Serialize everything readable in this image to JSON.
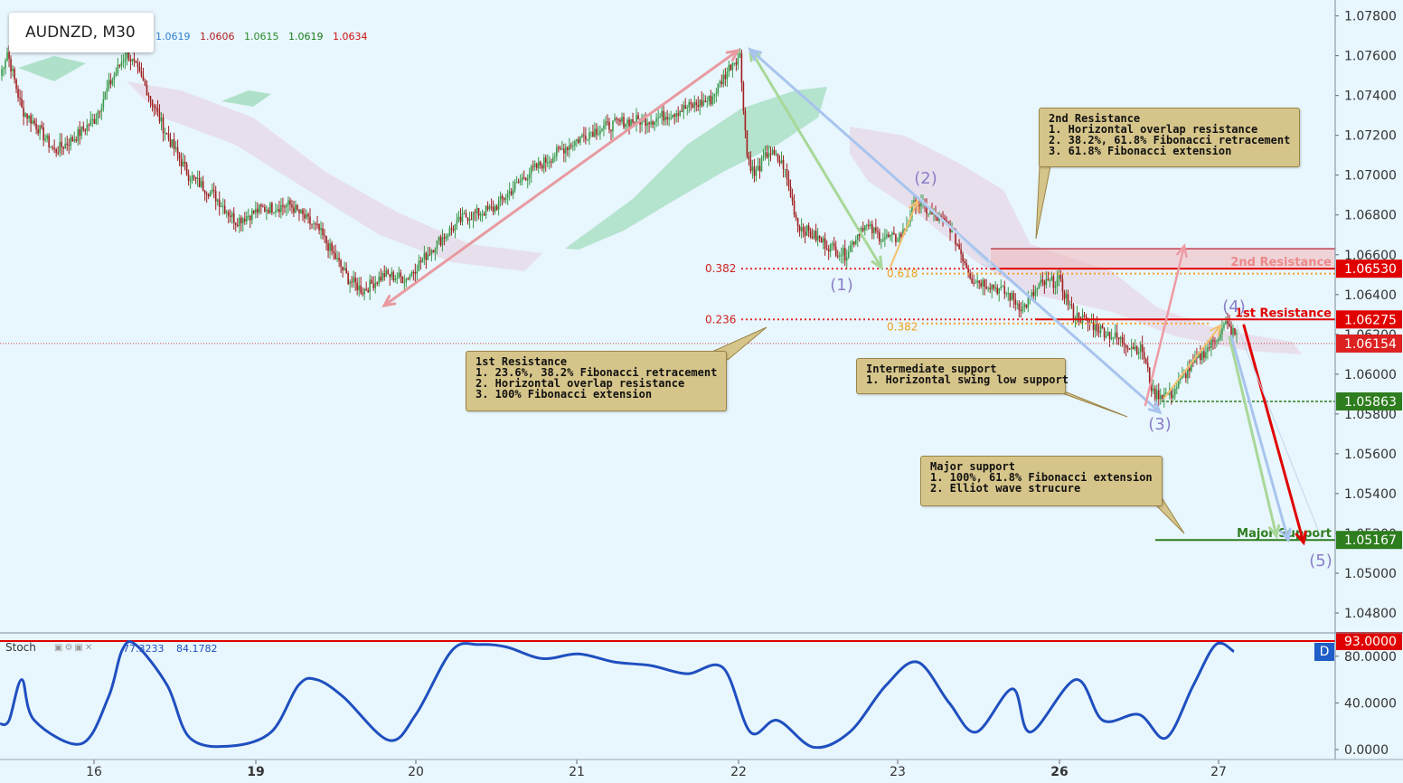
{
  "header": {
    "title": "AUDNZD, M30",
    "ohlc": [
      "1.0619",
      "1.0606",
      "1.0615",
      "1.0619",
      "1.0634"
    ],
    "ohlc_colors": [
      "#2f7fd0",
      "#b02020",
      "#2a8a2a",
      "#1a7a1a",
      "#d01010"
    ]
  },
  "price_axis": {
    "ticks": [
      "1.07800",
      "1.07600",
      "1.07400",
      "1.07200",
      "1.07000",
      "1.06800",
      "1.06600",
      "1.06400",
      "1.06200",
      "1.06000",
      "1.05800",
      "1.05600",
      "1.05400",
      "1.05200",
      "1.05000",
      "1.04800"
    ],
    "tick_values": [
      1.078,
      1.076,
      1.074,
      1.072,
      1.07,
      1.068,
      1.066,
      1.064,
      1.062,
      1.06,
      1.058,
      1.056,
      1.054,
      1.052,
      1.05,
      1.048
    ]
  },
  "price_labels": [
    {
      "text": "1.06530",
      "value": 1.0653,
      "color": "#e00000"
    },
    {
      "text": "1.06275",
      "value": 1.06275,
      "color": "#e00000"
    },
    {
      "text": "1.06154",
      "value": 1.06154,
      "color": "#dd2020"
    },
    {
      "text": "1.05863",
      "value": 1.05863,
      "color": "#2e7d1e"
    },
    {
      "text": "1.05167",
      "value": 1.05167,
      "color": "#2e7d1e"
    }
  ],
  "time_axis": [
    "16",
    "19",
    "20",
    "21",
    "22",
    "23",
    "26",
    "27"
  ],
  "time_axis_bold": [
    "19",
    "26"
  ],
  "levels": {
    "second_resistance_label": "2nd Resistance",
    "first_resistance_label": "1st Resistance",
    "major_support_label": "Major Support",
    "fib_0382_left": "0.382",
    "fib_0236": "0.236",
    "fib_0618": "0.618",
    "fib_0382_right": "0.382"
  },
  "wave_labels": [
    "(1)",
    "(2)",
    "(3)",
    "(4)",
    "(5)"
  ],
  "notes": {
    "second_resistance": [
      "2nd Resistance",
      "1. Horizontal overlap resistance",
      "2. 38.2%, 61.8% Fibonacci retracement",
      "3. 61.8% Fibonacci extension"
    ],
    "first_resistance": [
      "1st Resistance",
      "1. 23.6%, 38.2% Fibonacci retracement",
      "2. Horizontal overlap resistance",
      "3. 100% Fibonacci extension"
    ],
    "intermediate_support": [
      "Intermediate support",
      "1. Horizontal swing low support"
    ],
    "major_support": [
      "Major support",
      "1. 100%, 61.8% Fibonacci extension",
      "2. Elliot wave strucure"
    ]
  },
  "stoch": {
    "label": "Stoch",
    "values": [
      "77.3233",
      "84.1782"
    ],
    "ticks": [
      "80.0000",
      "40.0000",
      "0.0000"
    ],
    "tick_values": [
      80,
      40,
      0
    ],
    "level_label": "93.0000",
    "level": 93,
    "d_button": "D"
  },
  "chart_data": {
    "type": "candlestick",
    "symbol": "AUDNZD",
    "timeframe": "M30",
    "ylim": [
      1.047,
      1.0788
    ],
    "x_categories": [
      "16",
      "19",
      "20",
      "21",
      "22",
      "23",
      "26",
      "27"
    ],
    "close_path": [
      {
        "t": 0,
        "y": 1.075
      },
      {
        "t": 4,
        "y": 1.0762
      },
      {
        "t": 12,
        "y": 1.0733
      },
      {
        "t": 20,
        "y": 1.0725
      },
      {
        "t": 30,
        "y": 1.0712
      },
      {
        "t": 40,
        "y": 1.0718
      },
      {
        "t": 52,
        "y": 1.0728
      },
      {
        "t": 60,
        "y": 1.0745
      },
      {
        "t": 70,
        "y": 1.0762
      },
      {
        "t": 80,
        "y": 1.0745
      },
      {
        "t": 92,
        "y": 1.072
      },
      {
        "t": 104,
        "y": 1.07
      },
      {
        "t": 118,
        "y": 1.069
      },
      {
        "t": 130,
        "y": 1.0677
      },
      {
        "t": 144,
        "y": 1.0683
      },
      {
        "t": 160,
        "y": 1.0685
      },
      {
        "t": 176,
        "y": 1.0672
      },
      {
        "t": 192,
        "y": 1.0648
      },
      {
        "t": 200,
        "y": 1.0642
      },
      {
        "t": 212,
        "y": 1.065
      },
      {
        "t": 224,
        "y": 1.0648
      },
      {
        "t": 240,
        "y": 1.0665
      },
      {
        "t": 256,
        "y": 1.0679
      },
      {
        "t": 272,
        "y": 1.0683
      },
      {
        "t": 290,
        "y": 1.07
      },
      {
        "t": 310,
        "y": 1.0713
      },
      {
        "t": 326,
        "y": 1.0722
      },
      {
        "t": 344,
        "y": 1.0727
      },
      {
        "t": 360,
        "y": 1.0728
      },
      {
        "t": 376,
        "y": 1.0733
      },
      {
        "t": 392,
        "y": 1.0738
      },
      {
        "t": 404,
        "y": 1.0757
      },
      {
        "t": 408,
        "y": 1.076
      },
      {
        "t": 412,
        "y": 1.071
      },
      {
        "t": 416,
        "y": 1.07
      },
      {
        "t": 424,
        "y": 1.0712
      },
      {
        "t": 432,
        "y": 1.0705
      },
      {
        "t": 440,
        "y": 1.0675
      },
      {
        "t": 448,
        "y": 1.067
      },
      {
        "t": 456,
        "y": 1.0665
      },
      {
        "t": 466,
        "y": 1.066
      },
      {
        "t": 476,
        "y": 1.0675
      },
      {
        "t": 486,
        "y": 1.0669
      },
      {
        "t": 494,
        "y": 1.0668
      },
      {
        "t": 498,
        "y": 1.0671
      },
      {
        "t": 505,
        "y": 1.0687
      },
      {
        "t": 514,
        "y": 1.068
      },
      {
        "t": 524,
        "y": 1.0674
      },
      {
        "t": 536,
        "y": 1.0648
      },
      {
        "t": 546,
        "y": 1.0645
      },
      {
        "t": 556,
        "y": 1.064
      },
      {
        "t": 564,
        "y": 1.0633
      },
      {
        "t": 574,
        "y": 1.0645
      },
      {
        "t": 584,
        "y": 1.0647
      },
      {
        "t": 592,
        "y": 1.063
      },
      {
        "t": 602,
        "y": 1.0625
      },
      {
        "t": 612,
        "y": 1.062
      },
      {
        "t": 622,
        "y": 1.0615
      },
      {
        "t": 630,
        "y": 1.0612
      },
      {
        "t": 636,
        "y": 1.059
      },
      {
        "t": 646,
        "y": 1.059
      },
      {
        "t": 656,
        "y": 1.0603
      },
      {
        "t": 668,
        "y": 1.0615
      },
      {
        "t": 676,
        "y": 1.0625
      },
      {
        "t": 682,
        "y": 1.0619
      }
    ],
    "stoch_path": [
      {
        "x": 0,
        "k": 22
      },
      {
        "x": 10,
        "k": 25
      },
      {
        "x": 24,
        "k": 60
      },
      {
        "x": 38,
        "k": 25
      },
      {
        "x": 90,
        "k": 5
      },
      {
        "x": 120,
        "k": 45
      },
      {
        "x": 135,
        "k": 85
      },
      {
        "x": 150,
        "k": 90
      },
      {
        "x": 185,
        "k": 55
      },
      {
        "x": 210,
        "k": 10
      },
      {
        "x": 255,
        "k": 3
      },
      {
        "x": 300,
        "k": 15
      },
      {
        "x": 330,
        "k": 55
      },
      {
        "x": 350,
        "k": 60
      },
      {
        "x": 380,
        "k": 45
      },
      {
        "x": 430,
        "k": 8
      },
      {
        "x": 460,
        "k": 30
      },
      {
        "x": 500,
        "k": 85
      },
      {
        "x": 530,
        "k": 90
      },
      {
        "x": 560,
        "k": 88
      },
      {
        "x": 600,
        "k": 78
      },
      {
        "x": 640,
        "k": 82
      },
      {
        "x": 680,
        "k": 75
      },
      {
        "x": 720,
        "k": 72
      },
      {
        "x": 760,
        "k": 65
      },
      {
        "x": 800,
        "k": 70
      },
      {
        "x": 830,
        "k": 15
      },
      {
        "x": 860,
        "k": 25
      },
      {
        "x": 900,
        "k": 2
      },
      {
        "x": 940,
        "k": 15
      },
      {
        "x": 980,
        "k": 55
      },
      {
        "x": 1015,
        "k": 75
      },
      {
        "x": 1050,
        "k": 40
      },
      {
        "x": 1080,
        "k": 15
      },
      {
        "x": 1120,
        "k": 52
      },
      {
        "x": 1140,
        "k": 15
      },
      {
        "x": 1190,
        "k": 60
      },
      {
        "x": 1220,
        "k": 25
      },
      {
        "x": 1260,
        "k": 30
      },
      {
        "x": 1290,
        "k": 10
      },
      {
        "x": 1320,
        "k": 55
      },
      {
        "x": 1345,
        "k": 90
      },
      {
        "x": 1365,
        "k": 84
      }
    ]
  },
  "colors": {
    "bull": "#3a9a4a",
    "bear": "#a02020",
    "resistance": "#e00000",
    "support": "#2e7d1e",
    "background": "#e8f6fd"
  }
}
